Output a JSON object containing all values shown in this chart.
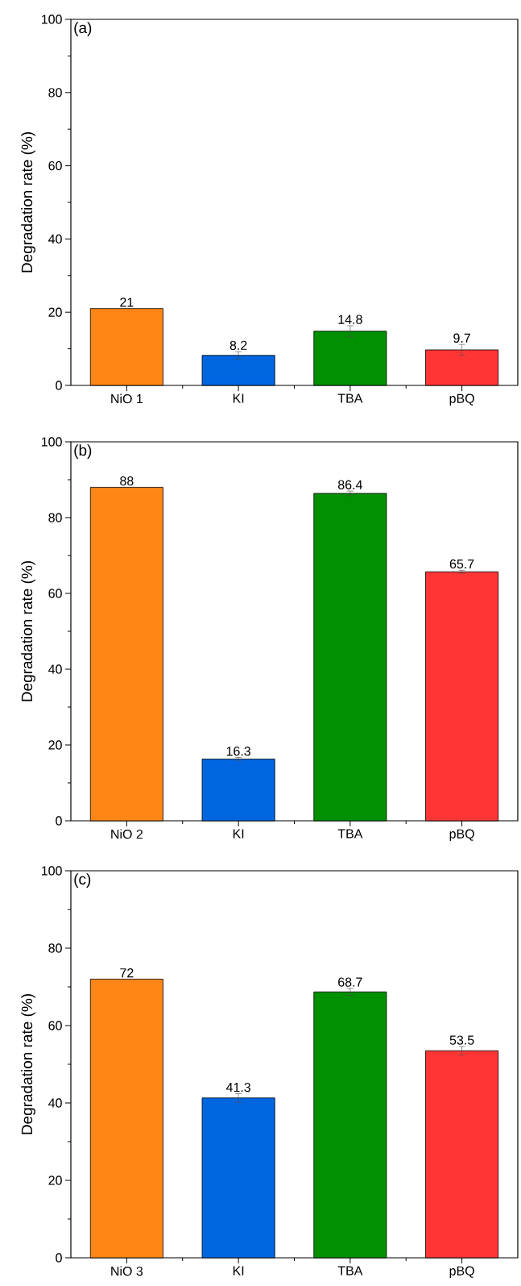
{
  "chart_data": [
    {
      "type": "bar",
      "title": "(a)",
      "ylabel": "Degradation rate (%)",
      "categories": [
        "NiO 1",
        "KI",
        "TBA",
        "pBQ"
      ],
      "values": [
        21,
        8.2,
        14.8,
        9.7
      ],
      "errors": [
        null,
        1.0,
        1.5,
        1.5
      ],
      "colors": [
        "#ff8515",
        "#0066e0",
        "#009000",
        "#ff3535"
      ],
      "ylim": [
        0,
        100
      ],
      "yticks": [
        0,
        20,
        40,
        60,
        80,
        100
      ],
      "data_labels": true
    },
    {
      "type": "bar",
      "title": "(b)",
      "ylabel": "Degradation rate (%)",
      "categories": [
        "NiO 2",
        "KI",
        "TBA",
        "pBQ"
      ],
      "values": [
        88,
        16.3,
        86.4,
        65.7
      ],
      "errors": [
        null,
        0.4,
        0.6,
        0.4
      ],
      "colors": [
        "#ff8515",
        "#0066e0",
        "#009000",
        "#ff3535"
      ],
      "ylim": [
        0,
        100
      ],
      "yticks": [
        0,
        20,
        40,
        60,
        80,
        100
      ],
      "data_labels": true
    },
    {
      "type": "bar",
      "title": "(c)",
      "ylabel": "Degradation rate (%)",
      "categories": [
        "NiO 3",
        "KI",
        "TBA",
        "pBQ"
      ],
      "values": [
        72,
        41.3,
        68.7,
        53.5
      ],
      "errors": [
        null,
        1.1,
        0.9,
        1.1
      ],
      "colors": [
        "#ff8515",
        "#0066e0",
        "#009000",
        "#ff3535"
      ],
      "ylim": [
        0,
        100
      ],
      "yticks": [
        0,
        20,
        40,
        60,
        80,
        100
      ],
      "data_labels": true
    }
  ]
}
